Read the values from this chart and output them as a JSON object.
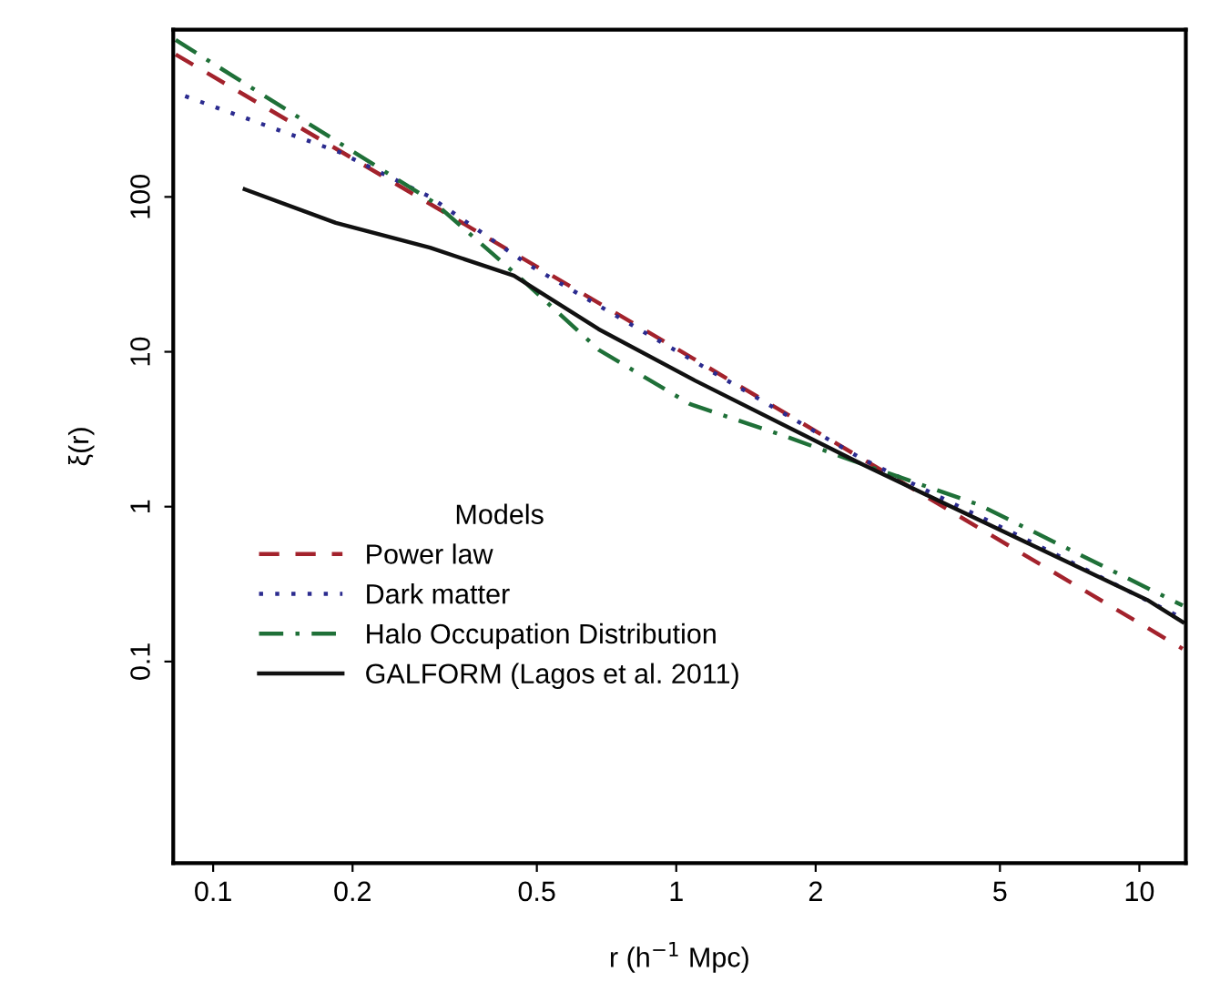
{
  "chart_data": {
    "type": "line",
    "xlabel": "r (h$^{−1}$ Mpc)",
    "ylabel": "ξ(r)",
    "legend_title": "Models",
    "legend": "bottom left",
    "log": "xy",
    "grid": false,
    "xlim": [
      0.082,
      12.6
    ],
    "xticks": [
      0.1,
      0.2,
      0.5,
      1,
      2,
      5,
      10
    ],
    "ylim": [
      0.005,
      1200
    ],
    "yticks": [
      0.1,
      1,
      10,
      100
    ],
    "series": [
      {
        "name": "Power law",
        "color": "#a3222c",
        "line_style": "dashed",
        "x": [
          0.083,
          1,
          12.4
        ],
        "values": [
          830,
          10.5,
          0.121
        ]
      },
      {
        "name": "Dark matter",
        "color": "#2b2b8f",
        "line_style": "dotted",
        "x": [
          0.087,
          0.187,
          0.294,
          0.476,
          0.98,
          2.5,
          5.66,
          12.4
        ],
        "values": [
          447,
          195,
          100,
          37,
          10.5,
          2.06,
          0.62,
          0.19
        ]
      },
      {
        "name": "Halo Occupation Distribution",
        "color": "#1f7038",
        "line_style": "dashdot",
        "x": [
          0.083,
          0.3,
          0.46,
          0.68,
          1.07,
          1.69,
          2.5,
          4.5,
          12.4
        ],
        "values": [
          1030,
          92,
          30,
          10.3,
          4.6,
          2.9,
          1.9,
          1.03,
          0.23
        ]
      },
      {
        "name": "GALFORM (Lagos et al. 2011)",
        "color": "#111111",
        "line_style": "solid",
        "x": [
          0.117,
          0.184,
          0.294,
          0.446,
          0.68,
          1.1,
          2.5,
          10.4,
          12.4
        ],
        "values": [
          112,
          68,
          47,
          31,
          14,
          6.5,
          1.9,
          0.25,
          0.18
        ]
      }
    ]
  }
}
